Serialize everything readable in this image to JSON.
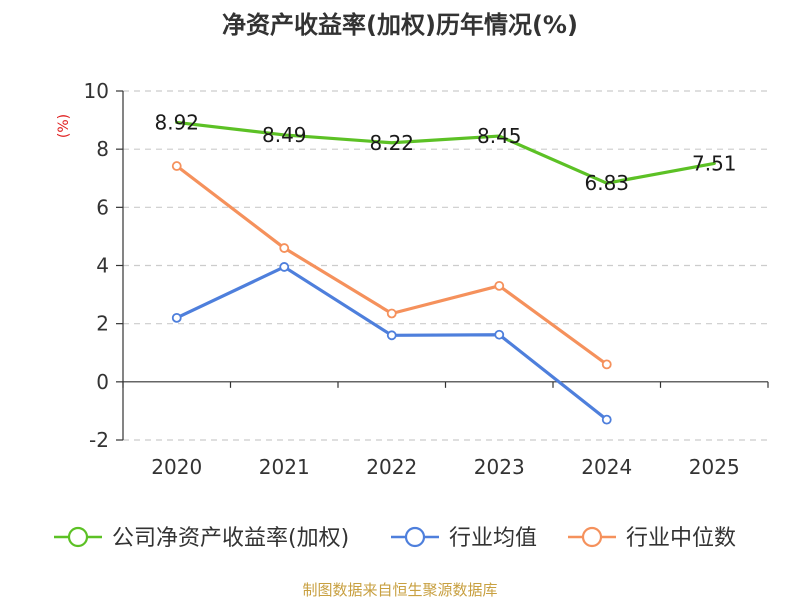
{
  "chart_data": {
    "type": "line",
    "title": "净资产收益率(加权)历年情况(%)",
    "unit_label": "(%)",
    "categories": [
      "2020",
      "2021",
      "2022",
      "2023",
      "2024",
      "2025"
    ],
    "ylim": [
      -2,
      10
    ],
    "yticks": [
      -2,
      0,
      2,
      4,
      6,
      8,
      10
    ],
    "grid": true,
    "legend_position": "bottom",
    "series": [
      {
        "name": "公司净资产收益率(加权)",
        "color": "#5cc125",
        "values": [
          8.92,
          8.49,
          8.22,
          8.45,
          6.83,
          7.51
        ],
        "labels": [
          "8.92",
          "8.49",
          "8.22",
          "8.45",
          "6.83",
          "7.51"
        ],
        "show_labels": true,
        "marker": "none"
      },
      {
        "name": "行业均值",
        "color": "#4e7fdc",
        "values": [
          2.2,
          3.95,
          1.6,
          1.62,
          -1.3,
          null
        ],
        "show_labels": false,
        "marker": "circle"
      },
      {
        "name": "行业中位数",
        "color": "#f5915c",
        "values": [
          7.42,
          4.6,
          2.35,
          3.3,
          0.6,
          null
        ],
        "show_labels": false,
        "marker": "circle"
      }
    ],
    "source": "制图数据来自恒生聚源数据库"
  }
}
